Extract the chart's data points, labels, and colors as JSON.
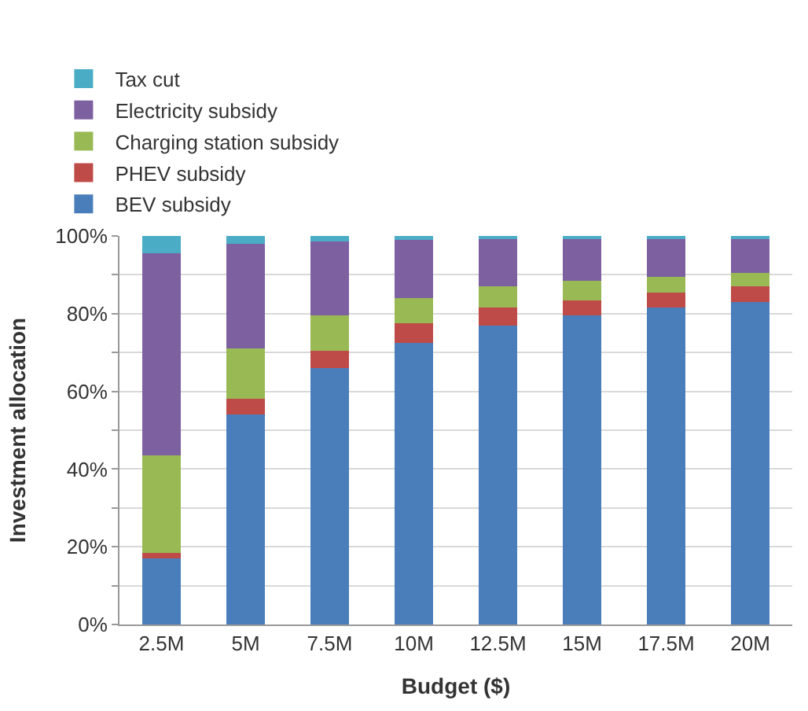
{
  "chart_data": {
    "type": "bar",
    "stacked": true,
    "xlabel": "Budget ($)",
    "ylabel": "Investment allocation",
    "categories": [
      "2.5M",
      "5M",
      "7.5M",
      "10M",
      "12.5M",
      "15M",
      "17.5M",
      "20M"
    ],
    "series": [
      {
        "name": "BEV subsidy",
        "color": "#4a7ebb",
        "values": [
          17,
          54,
          66,
          72.5,
          77,
          79.5,
          81.5,
          83
        ]
      },
      {
        "name": "PHEV subsidy",
        "color": "#be4b48",
        "values": [
          1.5,
          4,
          4.5,
          5,
          4.5,
          4,
          4,
          4
        ]
      },
      {
        "name": "Charging station subsidy",
        "color": "#98b954",
        "values": [
          25,
          13,
          9,
          6.5,
          5.5,
          5,
          4,
          3.5
        ]
      },
      {
        "name": "Electricity subsidy",
        "color": "#7d60a0",
        "values": [
          52,
          27,
          19,
          15,
          12.5,
          11,
          10,
          9
        ]
      },
      {
        "name": "Tax cut",
        "color": "#4bacc6",
        "values": [
          4.5,
          2,
          1.5,
          1,
          0.5,
          0.5,
          0.5,
          0.5
        ]
      }
    ],
    "ylim": [
      0,
      100
    ],
    "yticks": [
      {
        "value": 0,
        "label": "0%"
      },
      {
        "value": 10,
        "label": null
      },
      {
        "value": 20,
        "label": "20%"
      },
      {
        "value": 30,
        "label": null
      },
      {
        "value": 40,
        "label": "40%"
      },
      {
        "value": 50,
        "label": null
      },
      {
        "value": 60,
        "label": "60%"
      },
      {
        "value": 70,
        "label": null
      },
      {
        "value": 80,
        "label": "80%"
      },
      {
        "value": 90,
        "label": null
      },
      {
        "value": 100,
        "label": "100%"
      }
    ],
    "grid": "y",
    "legend": "top left"
  }
}
